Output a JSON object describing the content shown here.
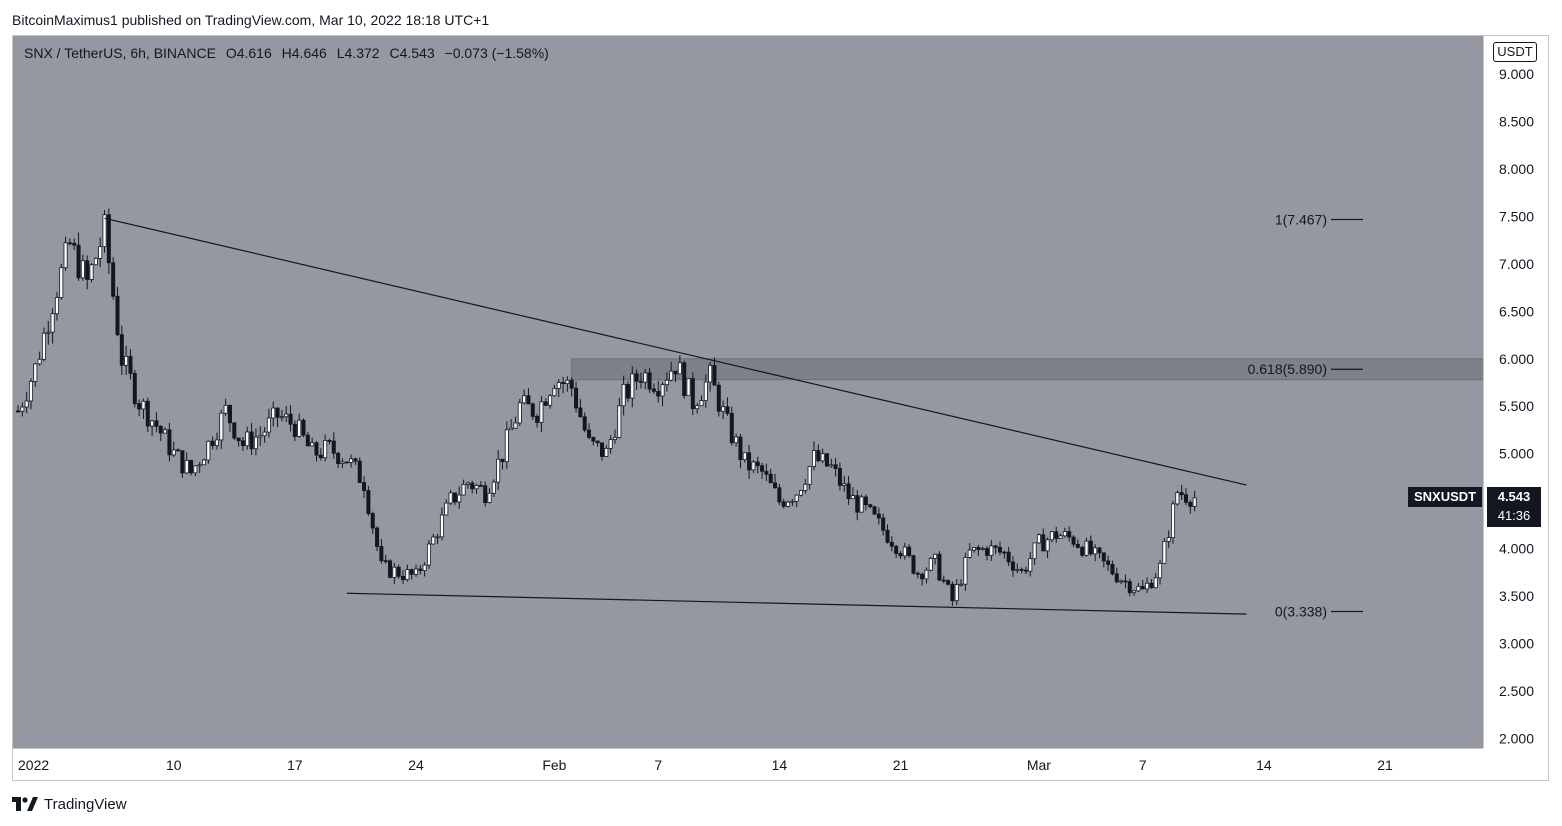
{
  "header": {
    "published_by": "BitcoinMaximus1 published on TradingView.com, Mar 10, 2022 18:18 UTC+1"
  },
  "legend": {
    "symbol": "SNX / TetherUS, 6h, BINANCE",
    "open_label": "O",
    "open": "4.616",
    "high_label": "H",
    "high": "4.646",
    "low_label": "L",
    "low": "4.372",
    "close_label": "C",
    "close": "4.543",
    "change": "−0.073 (−1.58%)"
  },
  "axis": {
    "currency": "USDT",
    "symbol_tag": "SNXUSDT",
    "last_price": "4.543",
    "countdown": "41:36"
  },
  "footer": {
    "brand": "TradingView",
    "logo_icon": "tradingview-logo-icon"
  },
  "colors": {
    "plot_bg": "#9598a1",
    "candle": "#ffffff",
    "candle_down": "#131722",
    "line": "#131722",
    "zone": "#7f8189"
  },
  "chart_data": {
    "type": "candlestick",
    "ylim": [
      1.9,
      9.4
    ],
    "y_ticks": [
      "9.000",
      "8.500",
      "8.000",
      "7.500",
      "7.000",
      "6.500",
      "6.000",
      "5.500",
      "5.000",
      "4.500",
      "4.000",
      "3.500",
      "3.000",
      "2.500",
      "2.000"
    ],
    "x_ticks": [
      {
        "label": "2022",
        "date": "2022-01-01"
      },
      {
        "label": "10",
        "date": "2022-01-10"
      },
      {
        "label": "17",
        "date": "2022-01-17"
      },
      {
        "label": "24",
        "date": "2022-01-24"
      },
      {
        "label": "Feb",
        "date": "2022-02-01"
      },
      {
        "label": "7",
        "date": "2022-02-07"
      },
      {
        "label": "14",
        "date": "2022-02-14"
      },
      {
        "label": "21",
        "date": "2022-02-21"
      },
      {
        "label": "Mar",
        "date": "2022-03-01"
      },
      {
        "label": "7",
        "date": "2022-03-07"
      },
      {
        "label": "14",
        "date": "2022-03-14"
      },
      {
        "label": "21",
        "date": "2022-03-21"
      }
    ],
    "close_path": [
      {
        "date": "2022-01-01",
        "price": 5.45
      },
      {
        "date": "2022-01-02",
        "price": 5.9
      },
      {
        "date": "2022-01-03",
        "price": 6.6
      },
      {
        "date": "2022-01-04",
        "price": 7.2
      },
      {
        "date": "2022-01-05",
        "price": 6.8
      },
      {
        "date": "2022-01-06",
        "price": 7.35
      },
      {
        "date": "2022-01-07",
        "price": 6.0
      },
      {
        "date": "2022-01-08",
        "price": 5.55
      },
      {
        "date": "2022-01-09",
        "price": 5.3
      },
      {
        "date": "2022-01-10",
        "price": 5.0
      },
      {
        "date": "2022-01-11",
        "price": 4.8
      },
      {
        "date": "2022-01-12",
        "price": 5.1
      },
      {
        "date": "2022-01-13",
        "price": 5.45
      },
      {
        "date": "2022-01-14",
        "price": 5.1
      },
      {
        "date": "2022-01-15",
        "price": 5.2
      },
      {
        "date": "2022-01-16",
        "price": 5.4
      },
      {
        "date": "2022-01-17",
        "price": 5.3
      },
      {
        "date": "2022-01-18",
        "price": 5.0
      },
      {
        "date": "2022-01-19",
        "price": 5.05
      },
      {
        "date": "2022-01-20",
        "price": 4.95
      },
      {
        "date": "2022-01-21",
        "price": 4.7
      },
      {
        "date": "2022-01-22",
        "price": 3.8
      },
      {
        "date": "2022-01-23",
        "price": 3.75
      },
      {
        "date": "2022-01-24",
        "price": 3.7
      },
      {
        "date": "2022-01-25",
        "price": 4.1
      },
      {
        "date": "2022-01-26",
        "price": 4.5
      },
      {
        "date": "2022-01-27",
        "price": 4.7
      },
      {
        "date": "2022-01-28",
        "price": 4.6
      },
      {
        "date": "2022-01-29",
        "price": 5.0
      },
      {
        "date": "2022-01-30",
        "price": 5.5
      },
      {
        "date": "2022-01-31",
        "price": 5.45
      },
      {
        "date": "2022-02-01",
        "price": 5.8
      },
      {
        "date": "2022-02-02",
        "price": 5.7
      },
      {
        "date": "2022-02-03",
        "price": 5.1
      },
      {
        "date": "2022-02-04",
        "price": 5.0
      },
      {
        "date": "2022-02-05",
        "price": 5.6
      },
      {
        "date": "2022-02-06",
        "price": 5.85
      },
      {
        "date": "2022-02-07",
        "price": 5.75
      },
      {
        "date": "2022-02-08",
        "price": 5.95
      },
      {
        "date": "2022-02-09",
        "price": 5.55
      },
      {
        "date": "2022-02-10",
        "price": 5.8
      },
      {
        "date": "2022-02-11",
        "price": 5.3
      },
      {
        "date": "2022-02-12",
        "price": 4.9
      },
      {
        "date": "2022-02-13",
        "price": 4.8
      },
      {
        "date": "2022-02-14",
        "price": 4.5
      },
      {
        "date": "2022-02-15",
        "price": 4.6
      },
      {
        "date": "2022-02-16",
        "price": 4.95
      },
      {
        "date": "2022-02-17",
        "price": 4.85
      },
      {
        "date": "2022-02-18",
        "price": 4.55
      },
      {
        "date": "2022-02-19",
        "price": 4.4
      },
      {
        "date": "2022-02-20",
        "price": 4.2
      },
      {
        "date": "2022-02-21",
        "price": 4.0
      },
      {
        "date": "2022-02-22",
        "price": 3.75
      },
      {
        "date": "2022-02-23",
        "price": 3.85
      },
      {
        "date": "2022-02-24",
        "price": 3.45
      },
      {
        "date": "2022-02-25",
        "price": 3.95
      },
      {
        "date": "2022-02-26",
        "price": 4.0
      },
      {
        "date": "2022-02-27",
        "price": 3.95
      },
      {
        "date": "2022-02-28",
        "price": 3.75
      },
      {
        "date": "2022-03-01",
        "price": 4.05
      },
      {
        "date": "2022-03-02",
        "price": 4.15
      },
      {
        "date": "2022-03-03",
        "price": 4.1
      },
      {
        "date": "2022-03-04",
        "price": 3.95
      },
      {
        "date": "2022-03-05",
        "price": 3.8
      },
      {
        "date": "2022-03-06",
        "price": 3.65
      },
      {
        "date": "2022-03-07",
        "price": 3.55
      },
      {
        "date": "2022-03-08",
        "price": 3.8
      },
      {
        "date": "2022-03-09",
        "price": 4.6
      },
      {
        "date": "2022-03-10",
        "price": 4.54
      }
    ],
    "fib_levels": [
      {
        "label": "1(7.467)",
        "price": 7.467
      },
      {
        "label": "0.618(5.890)",
        "price": 5.89
      },
      {
        "label": "0(3.338)",
        "price": 3.338
      }
    ],
    "resistance_zone": {
      "from_date": "2022-02-02",
      "to_date": "2022-03-28",
      "low": 5.78,
      "high": 6.0
    },
    "descending_resistance": [
      {
        "date": "2022-01-06",
        "price": 7.48
      },
      {
        "date": "2022-03-13",
        "price": 4.67
      }
    ],
    "support_line": [
      {
        "date": "2022-01-20",
        "price": 3.53
      },
      {
        "date": "2022-03-13",
        "price": 3.31
      }
    ]
  }
}
